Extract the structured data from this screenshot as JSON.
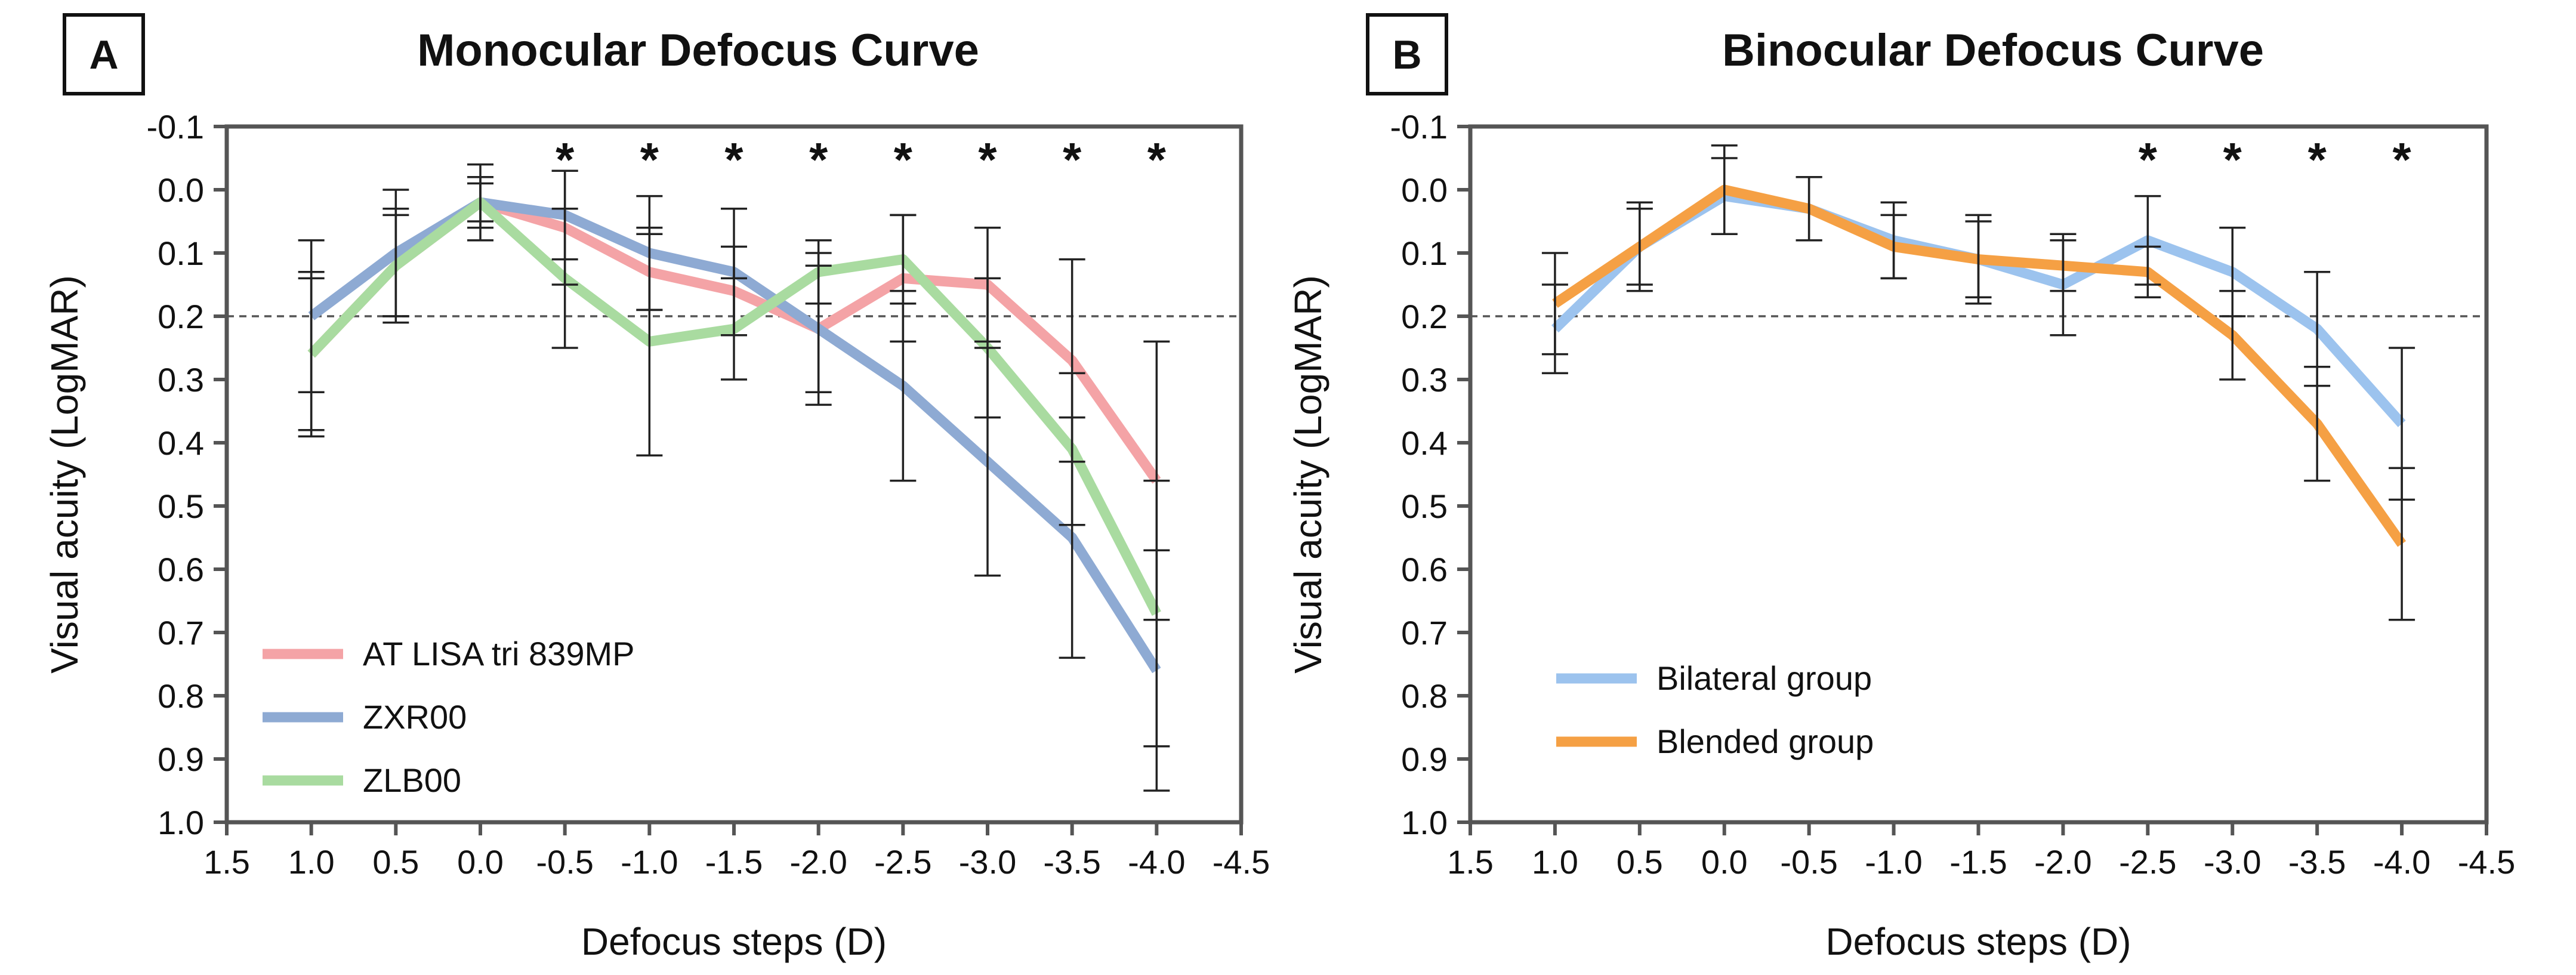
{
  "chart_data": [
    {
      "panel_letter": "A",
      "type": "line",
      "title": "Monocular Defocus Curve",
      "xlabel": "Defocus steps (D)",
      "ylabel": "Visual acuity (LogMAR)",
      "x_ticks": [
        "1.5",
        "1.0",
        "0.5",
        "0.0",
        "-0.5",
        "-1.0",
        "-1.5",
        "-2.0",
        "-2.5",
        "-3.0",
        "-3.5",
        "-4.0",
        "-4.5"
      ],
      "x_values": [
        1.0,
        0.5,
        0.0,
        -0.5,
        -1.0,
        -1.5,
        -2.0,
        -2.5,
        -3.0,
        -3.5,
        -4.0
      ],
      "xlim": [
        1.5,
        -4.5
      ],
      "y_ticks": [
        "-0.1",
        "0.0",
        "0.1",
        "0.2",
        "0.3",
        "0.4",
        "0.5",
        "0.6",
        "0.7",
        "0.8",
        "0.9",
        "1.0"
      ],
      "ylim": [
        -0.1,
        1.0
      ],
      "y_inverted": true,
      "reference_line": 0.2,
      "significance_x": [
        -0.5,
        -1.0,
        -1.5,
        -2.0,
        -2.5,
        -3.0,
        -3.5,
        -4.0
      ],
      "significance_marker": "*",
      "legend_position": "bottom-left",
      "series": [
        {
          "name": "AT LISA tri 839MP",
          "color": "#f4a3a6",
          "values": [
            0.26,
            0.12,
            0.02,
            0.06,
            0.13,
            0.16,
            0.22,
            0.14,
            0.15,
            0.27,
            0.46
          ],
          "errors": [
            0.12,
            0.08,
            0.04,
            0.09,
            0.06,
            0.07,
            0.1,
            0.1,
            0.09,
            0.16,
            0.22
          ]
        },
        {
          "name": "ZXR00",
          "color": "#8eaad3",
          "values": [
            0.2,
            0.1,
            0.02,
            0.04,
            0.1,
            0.13,
            0.22,
            0.31,
            0.43,
            0.55,
            0.76
          ],
          "errors": [
            0.12,
            0.1,
            0.03,
            0.07,
            0.09,
            0.1,
            0.12,
            0.15,
            0.18,
            0.19,
            0.19
          ]
        },
        {
          "name": "ZLB00",
          "color": "#a9dba0",
          "values": [
            0.26,
            0.12,
            0.02,
            0.14,
            0.24,
            0.22,
            0.13,
            0.11,
            0.25,
            0.41,
            0.67
          ],
          "errors": [
            0.13,
            0.09,
            0.06,
            0.11,
            0.18,
            0.08,
            0.05,
            0.07,
            0.11,
            0.12,
            0.21
          ]
        }
      ]
    },
    {
      "panel_letter": "B",
      "type": "line",
      "title": "Binocular Defocus Curve",
      "xlabel": "Defocus steps (D)",
      "ylabel": "Visual acuity (LogMAR)",
      "x_ticks": [
        "1.5",
        "1.0",
        "0.5",
        "0.0",
        "-0.5",
        "-1.0",
        "-1.5",
        "-2.0",
        "-2.5",
        "-3.0",
        "-3.5",
        "-4.0",
        "-4.5"
      ],
      "x_values": [
        1.0,
        0.5,
        0.0,
        -0.5,
        -1.0,
        -1.5,
        -2.0,
        -2.5,
        -3.0,
        -3.5,
        -4.0
      ],
      "xlim": [
        1.5,
        -4.5
      ],
      "y_ticks": [
        "-0.1",
        "0.0",
        "0.1",
        "0.2",
        "0.3",
        "0.4",
        "0.5",
        "0.6",
        "0.7",
        "0.8",
        "0.9",
        "1.0"
      ],
      "ylim": [
        -0.1,
        1.0
      ],
      "y_inverted": true,
      "reference_line": 0.2,
      "significance_x": [
        -2.5,
        -3.0,
        -3.5,
        -4.0
      ],
      "significance_marker": "*",
      "legend_position": "bottom-left",
      "series": [
        {
          "name": "Bilateral group",
          "color": "#9cc3ee",
          "values": [
            0.22,
            0.09,
            0.01,
            0.03,
            0.08,
            0.11,
            0.15,
            0.08,
            0.13,
            0.22,
            0.37
          ],
          "errors": [
            0.07,
            0.06,
            0.06,
            0.05,
            0.06,
            0.06,
            0.08,
            0.07,
            0.07,
            0.09,
            0.12
          ]
        },
        {
          "name": "Blended group",
          "color": "#f5a044",
          "values": [
            0.18,
            0.09,
            0.0,
            0.03,
            0.09,
            0.11,
            0.12,
            0.13,
            0.23,
            0.37,
            0.56
          ],
          "errors": [
            0.08,
            0.07,
            0.07,
            0.05,
            0.05,
            0.07,
            0.04,
            0.04,
            0.07,
            0.09,
            0.12
          ]
        }
      ]
    }
  ]
}
